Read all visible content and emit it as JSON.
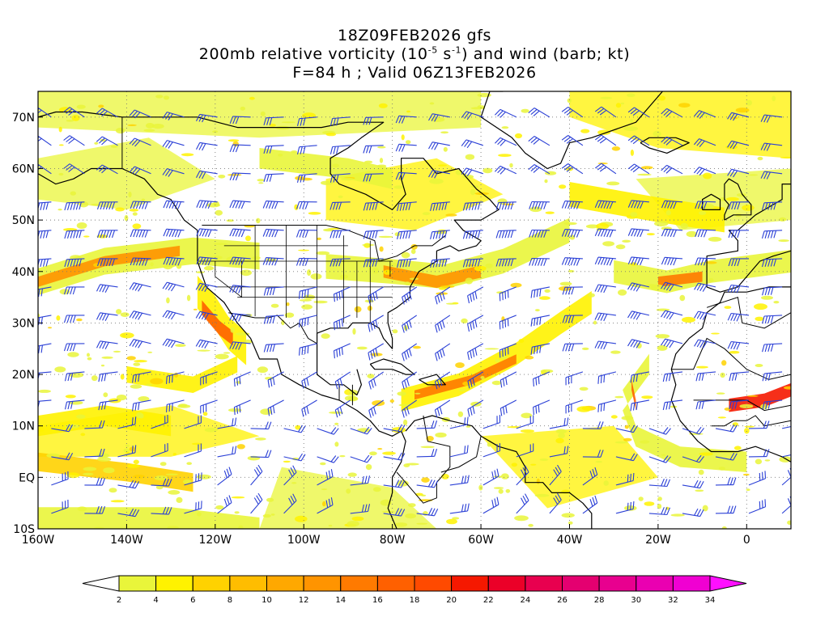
{
  "title": {
    "line1": "18Z09FEB2026 gfs",
    "line2_prefix": "200mb relative vorticity (10",
    "line2_exp1": "-5",
    "line2_mid": " s",
    "line2_exp2": "-1",
    "line2_suffix": ") and wind (barb; kt)",
    "line3": "F=84 h ; Valid 06Z13FEB2026"
  },
  "map": {
    "lon_range": [
      -160,
      10
    ],
    "lat_range": [
      -10,
      75
    ],
    "lat_labels": [
      "70N",
      "60N",
      "50N",
      "40N",
      "30N",
      "20N",
      "10N",
      "EQ",
      "10S"
    ],
    "lat_values": [
      70,
      60,
      50,
      40,
      30,
      20,
      10,
      0,
      -10
    ],
    "lon_labels": [
      "160W",
      "140W",
      "120W",
      "100W",
      "80W",
      "60W",
      "40W",
      "20W",
      "0"
    ],
    "lon_values": [
      -160,
      -140,
      -120,
      -100,
      -80,
      -60,
      -40,
      -20,
      0
    ],
    "barb_color": "#2a3fd6",
    "coastline_color": "#000000",
    "grid_style": "dotted"
  },
  "colorbar": {
    "labels": [
      "2",
      "4",
      "6",
      "8",
      "10",
      "12",
      "14",
      "16",
      "18",
      "20",
      "22",
      "24",
      "26",
      "28",
      "30",
      "32",
      "34"
    ],
    "colors": [
      "#e9f53a",
      "#fff200",
      "#ffd200",
      "#ffbd00",
      "#ffa800",
      "#ff9400",
      "#ff7a00",
      "#ff6000",
      "#ff4a00",
      "#f51800",
      "#eb0028",
      "#e8004f",
      "#e40070",
      "#e8008f",
      "#ea00b1",
      "#f000d2",
      "#f514ff"
    ],
    "under_color": "#ffffff",
    "over_color": "#ff10ff"
  }
}
